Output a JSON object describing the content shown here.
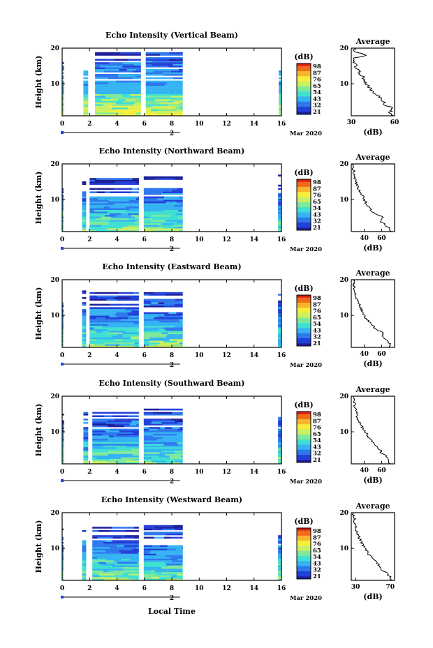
{
  "figure": {
    "month_label": "Mar 2020",
    "date_label": "2",
    "x_axis_label": "Local Time",
    "y_axis_label": "Height (km)",
    "colorbar_unit": "(dB)",
    "avg_title": "Average",
    "avg_xlabel": "(dB)"
  },
  "colorbar_ticks": [
    "98",
    "87",
    "76",
    "65",
    "54",
    "43",
    "32",
    "21"
  ],
  "colors": {
    "palette": [
      "#1d1f9a",
      "#2340d8",
      "#2e78ee",
      "#35b3f2",
      "#3fe0d2",
      "#7fe89a",
      "#c8f060",
      "#f4ef3c",
      "#f7b52a",
      "#f26b1c",
      "#d81e14"
    ],
    "axis": "#000000",
    "background": "#ffffff"
  },
  "chart_data": [
    {
      "type": "heatmap",
      "title": "Echo Intensity (Vertical Beam)",
      "xlabel": "",
      "ylabel": "Height (km)",
      "xlim": [
        0,
        16
      ],
      "ylim": [
        1,
        20
      ],
      "x_ticks": [
        "0",
        "2",
        "4",
        "6",
        "8",
        "10",
        "12",
        "14",
        "16"
      ],
      "y_ticks": [
        "10",
        "20"
      ],
      "colorbar_label": "(dB)",
      "colorbar_range": [
        21,
        98
      ],
      "data_segments_hours": [
        [
          0.0,
          0.15
        ],
        [
          1.55,
          1.9
        ],
        [
          2.4,
          5.75
        ],
        [
          6.1,
          8.8
        ],
        [
          15.8,
          16.0
        ]
      ],
      "average_profile": {
        "xlim": [
          30,
          60
        ],
        "x_ticks": [
          "30",
          "60"
        ],
        "heights_km": [
          1,
          2,
          3,
          4,
          5,
          6,
          7,
          8,
          9,
          10,
          11,
          12,
          13,
          14,
          15,
          16,
          17,
          18,
          19,
          20
        ],
        "values_db": [
          58,
          57,
          59,
          54,
          52,
          50,
          47,
          45,
          42,
          40,
          39,
          38,
          36,
          34,
          33,
          32,
          31,
          40,
          33,
          32
        ]
      }
    },
    {
      "type": "heatmap",
      "title": "Echo Intensity (Northward Beam)",
      "xlabel": "",
      "ylabel": "Height (km)",
      "xlim": [
        0,
        16
      ],
      "ylim": [
        1,
        20
      ],
      "x_ticks": [
        "0",
        "2",
        "4",
        "6",
        "8",
        "10",
        "12",
        "14",
        "16"
      ],
      "y_ticks": [
        "10",
        "20"
      ],
      "colorbar_label": "(dB)",
      "colorbar_range": [
        21,
        98
      ],
      "data_segments_hours": [
        [
          0.0,
          0.1
        ],
        [
          1.45,
          1.75
        ],
        [
          2.0,
          5.6
        ],
        [
          5.95,
          8.8
        ],
        [
          15.75,
          16.0
        ]
      ],
      "average_profile": {
        "xlim": [
          25,
          75
        ],
        "x_ticks": [
          "40",
          "60"
        ],
        "heights_km": [
          1,
          2,
          3,
          4,
          5,
          6,
          7,
          8,
          9,
          10,
          11,
          12,
          13,
          14,
          15,
          16,
          17,
          18,
          19,
          20
        ],
        "values_db": [
          70,
          68,
          64,
          58,
          62,
          52,
          48,
          44,
          42,
          40,
          38,
          36,
          33,
          32,
          30,
          29,
          28,
          28,
          27,
          28
        ]
      }
    },
    {
      "type": "heatmap",
      "title": "Echo Intensity (Eastward Beam)",
      "xlabel": "",
      "ylabel": "Height (km)",
      "xlim": [
        0,
        16
      ],
      "ylim": [
        1,
        20
      ],
      "x_ticks": [
        "0",
        "2",
        "4",
        "6",
        "8",
        "10",
        "12",
        "14",
        "16"
      ],
      "y_ticks": [
        "10",
        "20"
      ],
      "colorbar_label": "(dB)",
      "colorbar_range": [
        21,
        98
      ],
      "data_segments_hours": [
        [
          0.0,
          0.1
        ],
        [
          1.45,
          1.75
        ],
        [
          2.0,
          5.6
        ],
        [
          5.95,
          8.8
        ],
        [
          15.75,
          16.0
        ]
      ],
      "average_profile": {
        "xlim": [
          25,
          75
        ],
        "x_ticks": [
          "40",
          "60"
        ],
        "heights_km": [
          1,
          2,
          3,
          4,
          5,
          6,
          7,
          8,
          9,
          10,
          11,
          12,
          13,
          14,
          15,
          16,
          17,
          18,
          19,
          20
        ],
        "values_db": [
          70,
          69,
          65,
          60,
          62,
          54,
          50,
          46,
          42,
          40,
          38,
          36,
          34,
          32,
          31,
          30,
          29,
          28,
          28,
          27
        ]
      }
    },
    {
      "type": "heatmap",
      "title": "Echo Intensity (Southward Beam)",
      "xlabel": "",
      "ylabel": "Height (km)",
      "xlim": [
        0,
        16
      ],
      "ylim": [
        1,
        20
      ],
      "x_ticks": [
        "0",
        "2",
        "4",
        "6",
        "8",
        "10",
        "12",
        "14",
        "16"
      ],
      "y_ticks": [
        "10",
        "20"
      ],
      "colorbar_label": "(dB)",
      "colorbar_range": [
        21,
        98
      ],
      "data_segments_hours": [
        [
          0.0,
          0.15
        ],
        [
          1.55,
          1.9
        ],
        [
          2.2,
          5.6
        ],
        [
          5.95,
          8.8
        ],
        [
          15.75,
          16.0
        ]
      ],
      "average_profile": {
        "xlim": [
          25,
          75
        ],
        "x_ticks": [
          "40",
          "60"
        ],
        "heights_km": [
          1,
          2,
          3,
          4,
          5,
          6,
          7,
          8,
          9,
          10,
          11,
          12,
          13,
          14,
          15,
          16,
          17,
          18,
          19,
          20
        ],
        "values_db": [
          70,
          68,
          66,
          60,
          58,
          54,
          50,
          46,
          44,
          41,
          38,
          36,
          34,
          32,
          31,
          30,
          29,
          29,
          28,
          27
        ]
      }
    },
    {
      "type": "heatmap",
      "title": "Echo Intensity (Westward Beam)",
      "xlabel": "Local Time",
      "ylabel": "Height (km)",
      "xlim": [
        0,
        16
      ],
      "ylim": [
        1,
        20
      ],
      "x_ticks": [
        "0",
        "2",
        "4",
        "6",
        "8",
        "10",
        "12",
        "14",
        "16"
      ],
      "y_ticks": [
        "10",
        "20"
      ],
      "colorbar_label": "(dB)",
      "colorbar_range": [
        21,
        98
      ],
      "data_segments_hours": [
        [
          0.0,
          0.1
        ],
        [
          1.45,
          1.75
        ],
        [
          2.2,
          5.6
        ],
        [
          5.95,
          8.8
        ],
        [
          15.75,
          16.0
        ]
      ],
      "average_profile": {
        "xlim": [
          25,
          75
        ],
        "x_ticks": [
          "30",
          "70"
        ],
        "heights_km": [
          1,
          2,
          3,
          4,
          5,
          6,
          7,
          8,
          9,
          10,
          11,
          12,
          13,
          14,
          15,
          16,
          17,
          18,
          19,
          20
        ],
        "values_db": [
          72,
          70,
          66,
          60,
          58,
          54,
          50,
          46,
          44,
          41,
          38,
          36,
          34,
          32,
          31,
          30,
          29,
          29,
          28,
          27
        ]
      }
    }
  ]
}
